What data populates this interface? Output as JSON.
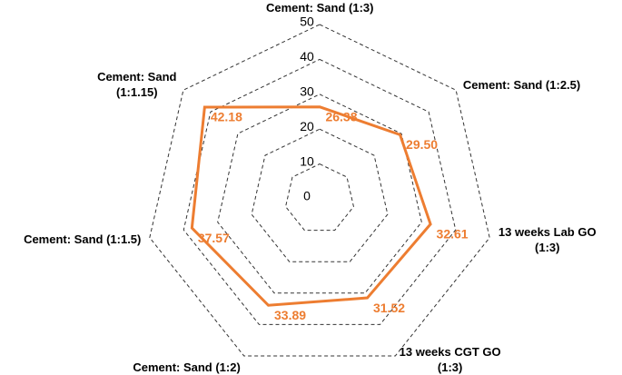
{
  "chart_data": {
    "type": "radar",
    "categories": [
      "Cement: Sand (1:3)",
      "Cement: Sand (1:2.5)",
      "13 weeks Lab GO\n(1:3)",
      "13 weeks CGT GO\n(1:3)",
      "Cement: Sand (1:2)",
      "Cement: Sand (1:1.5)",
      "Cement: Sand\n(1:1.15)"
    ],
    "values": [
      26.38,
      29.5,
      32.61,
      31.52,
      33.89,
      37.57,
      42.18
    ],
    "value_labels": [
      "26.38",
      "29.50",
      "32.61",
      "31.52",
      "33.89",
      "37.57",
      "42.18"
    ],
    "color": "#ed7d31",
    "ylim": [
      0,
      50
    ],
    "yticks": [
      0,
      10,
      20,
      30,
      40,
      50
    ],
    "grid": true
  }
}
